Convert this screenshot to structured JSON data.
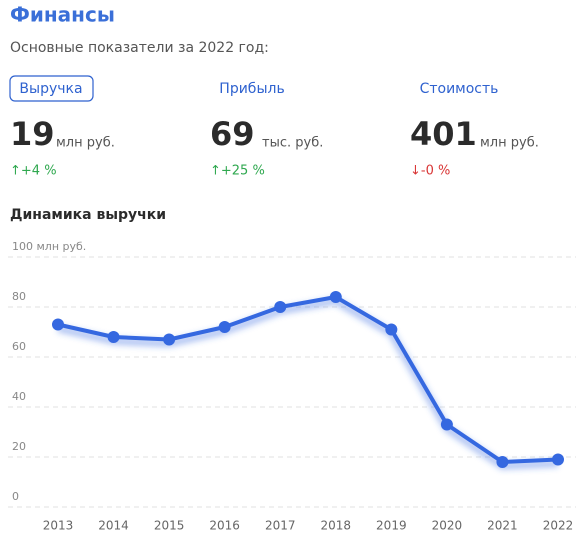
{
  "header": {
    "title": "Финансы",
    "subtitle": "Основные показатели за 2022 год:"
  },
  "metrics": [
    {
      "tab": "Выручка",
      "value": "19",
      "unit": "млн руб.",
      "change": "↑+4 %"
    },
    {
      "tab": "Прибыль",
      "value": "69",
      "unit": "тыс. руб.",
      "change": "↑+25 %"
    },
    {
      "tab": "Стоимость",
      "value": "401",
      "unit": "млн руб.",
      "change": "↓-0 %"
    }
  ],
  "chart_data": {
    "type": "line",
    "title": "Динамика выручки",
    "categories": [
      "2013",
      "2014",
      "2015",
      "2016",
      "2017",
      "2018",
      "2019",
      "2020",
      "2021",
      "2022"
    ],
    "values": [
      73,
      68,
      67,
      72,
      80,
      84,
      71,
      33,
      18,
      19
    ],
    "color": "#3568e0",
    "ylim": [
      0,
      100
    ],
    "yticks": [
      0,
      20,
      40,
      60,
      80,
      {
        "value": 100,
        "label": "100 млн руб."
      }
    ],
    "grid": true
  }
}
